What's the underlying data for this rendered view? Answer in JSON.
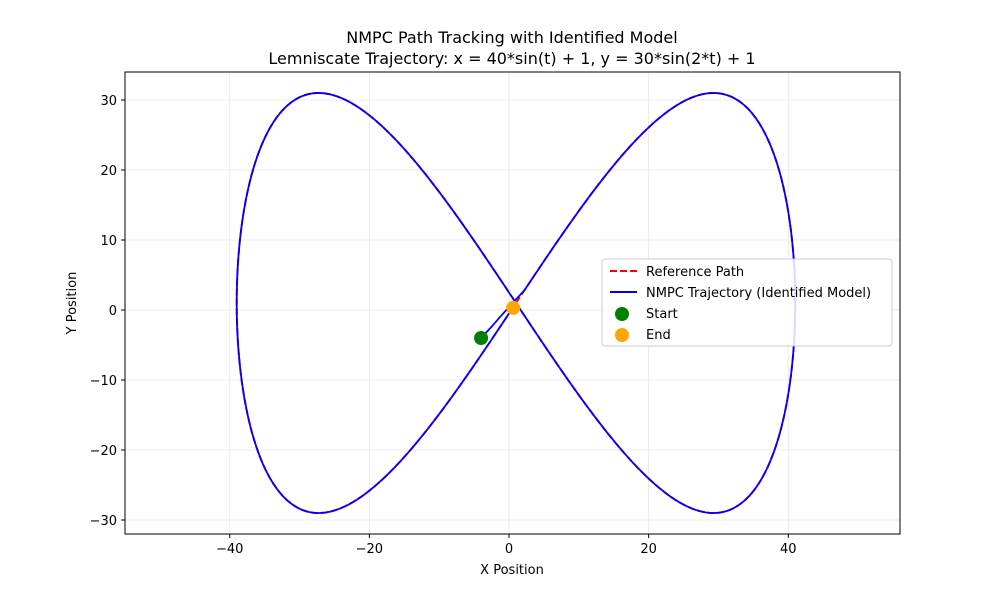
{
  "chart_data": {
    "type": "line",
    "title": "NMPC Path Tracking with Identified Model",
    "subtitle": "Lemniscate Trajectory: x = 40*sin(t) + 1, y = 30*sin(2*t) + 1",
    "xlabel": "X Position",
    "ylabel": "Y Position",
    "xlim": [
      -55,
      56
    ],
    "ylim": [
      -32,
      34
    ],
    "xticks": [
      -40,
      -20,
      0,
      20,
      40
    ],
    "yticks": [
      -30,
      -20,
      -10,
      0,
      10,
      20,
      30
    ],
    "xtick_labels": [
      "−40",
      "−20",
      "0",
      "20",
      "40"
    ],
    "ytick_labels": [
      "−30",
      "−20",
      "−10",
      "0",
      "10",
      "20",
      "30"
    ],
    "grid": true,
    "legend_position": "right",
    "series": [
      {
        "name": "Reference Path",
        "type": "line",
        "style": "dashed",
        "color": "#ff0000",
        "function": {
          "x_amplitude": 40,
          "x_offset": 1,
          "y_amplitude": 30,
          "y_offset": 1,
          "t_range": [
            0,
            6.2832
          ]
        }
      },
      {
        "name": "NMPC Trajectory (Identified Model)",
        "type": "line",
        "style": "solid",
        "color": "#0000ff",
        "start_point": [
          -4,
          -4
        ]
      },
      {
        "name": "Start",
        "type": "scatter",
        "color": "#008000",
        "points": [
          [
            -4,
            -4
          ]
        ]
      },
      {
        "name": "End",
        "type": "scatter",
        "color": "#ffa500",
        "points": [
          [
            0.6,
            0.3
          ]
        ]
      }
    ]
  }
}
